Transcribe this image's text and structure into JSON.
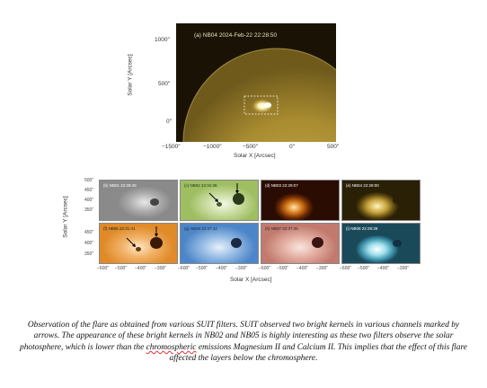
{
  "top_figure": {
    "label": "(a) NB04 2024-Feb-22 22:28:50",
    "xlabel": "Solar X [Arcsec]",
    "ylabel": "Solar Y [Arcsec]",
    "xticks": [
      "−1500″",
      "−1000″",
      "−500″",
      "0″",
      "500″"
    ],
    "yticks": [
      "1000″",
      "500″",
      "0″"
    ],
    "colors": {
      "background": "#1a1305",
      "disk": "#b89a3a"
    }
  },
  "grid_figure": {
    "xlabel": "Solar X [Arcsec]",
    "ylabel": "Solar Y [Arcsec]",
    "yticks_top": [
      "500″",
      "450″",
      "400″",
      "350″"
    ],
    "yticks_bottom": [
      "450″",
      "400″",
      "350″"
    ],
    "xticks": [
      "−600″",
      "−500″",
      "−400″",
      "−300″"
    ],
    "panels": [
      {
        "label": "(b) NB01 22:29:46",
        "color": "#ffffff"
      },
      {
        "label": "(c) NB02 22:31:36",
        "color": "#1a2a10"
      },
      {
        "label": "(d) NB03 22:29:07",
        "color": "#ffffff"
      },
      {
        "label": "(e) NB04 22:29:00",
        "color": "#ffffff"
      },
      {
        "label": "(f) NB05 22:31:41",
        "color": "#222222"
      },
      {
        "label": "(g) NB06 22:37:42",
        "color": "#1a2a40"
      },
      {
        "label": "(h) NB07 22:37:45",
        "color": "#222222"
      },
      {
        "label": "(i) NB08 22:28:39",
        "color": "#ffffff"
      }
    ]
  },
  "caption": {
    "part1": "Observation of the flare as obtained from various SUIT filters. SUIT observed two bright kernels in various channels marked by arrows. The appearance of these bright kernels in NB02 and NB05 is highly interesting as these two filters observe the solar photosphere, which is lower than the ",
    "underlined": "chromospheric",
    "part2": " emissions Magnesium II and Calcium II. This implies that the effect of this flare affected the layers below the chromosphere."
  }
}
